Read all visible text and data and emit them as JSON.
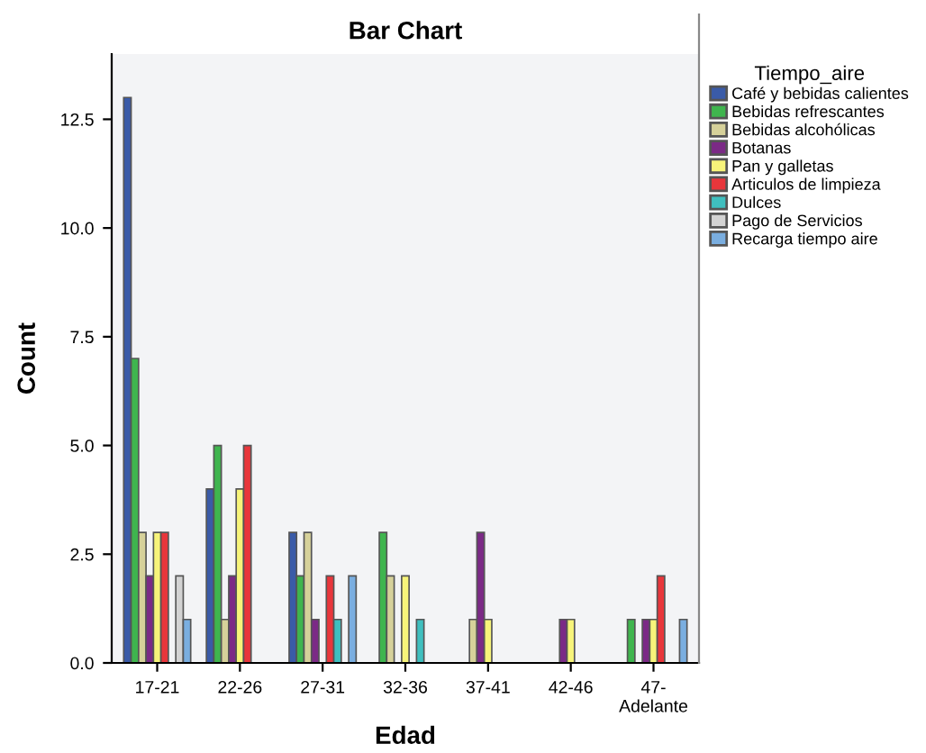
{
  "chart_data": {
    "type": "bar",
    "title": "Bar Chart",
    "xlabel": "Edad",
    "ylabel": "Count",
    "legend_title": "Tiempo_aire",
    "legend": "right",
    "grid": false,
    "categories": [
      "17-21",
      "22-26",
      "27-31",
      "32-36",
      "37-41",
      "42-46",
      "47-\nAdelante"
    ],
    "ylim": [
      0,
      14
    ],
    "yticks": [
      {
        "value": 0,
        "label": "0.0"
      },
      {
        "value": 2.5,
        "label": "2.5"
      },
      {
        "value": 5,
        "label": "5.0"
      },
      {
        "value": 7.5,
        "label": "7.5"
      },
      {
        "value": 10,
        "label": "10.0"
      },
      {
        "value": 12.5,
        "label": "12.5"
      }
    ],
    "series": [
      {
        "name": "Café y bebidas calientes",
        "color": "#3a5ba8",
        "values": [
          13,
          4,
          3,
          null,
          null,
          null,
          null
        ]
      },
      {
        "name": "Bebidas refrescantes",
        "color": "#3fb54e",
        "values": [
          7,
          5,
          2,
          3,
          null,
          null,
          1
        ]
      },
      {
        "name": "Bebidas alcohólicas",
        "color": "#d6d19a",
        "values": [
          3,
          1,
          3,
          2,
          1,
          null,
          null
        ]
      },
      {
        "name": "Botanas",
        "color": "#7b2a86",
        "values": [
          2,
          2,
          1,
          null,
          3,
          1,
          1
        ]
      },
      {
        "name": "Pan y galletas",
        "color": "#f7f47a",
        "values": [
          3,
          4,
          null,
          2,
          1,
          1,
          1
        ]
      },
      {
        "name": "Articulos de limpieza",
        "color": "#e8363b",
        "values": [
          3,
          5,
          2,
          null,
          null,
          null,
          2
        ]
      },
      {
        "name": "Dulces",
        "color": "#3fbfbf",
        "values": [
          null,
          null,
          1,
          1,
          null,
          null,
          null
        ]
      },
      {
        "name": "Pago de Servicios",
        "color": "#d3d3d3",
        "values": [
          2,
          null,
          null,
          null,
          null,
          null,
          null
        ]
      },
      {
        "name": "Recarga tiempo aire",
        "color": "#7aaee0",
        "values": [
          1,
          null,
          2,
          null,
          null,
          null,
          1
        ]
      }
    ]
  }
}
